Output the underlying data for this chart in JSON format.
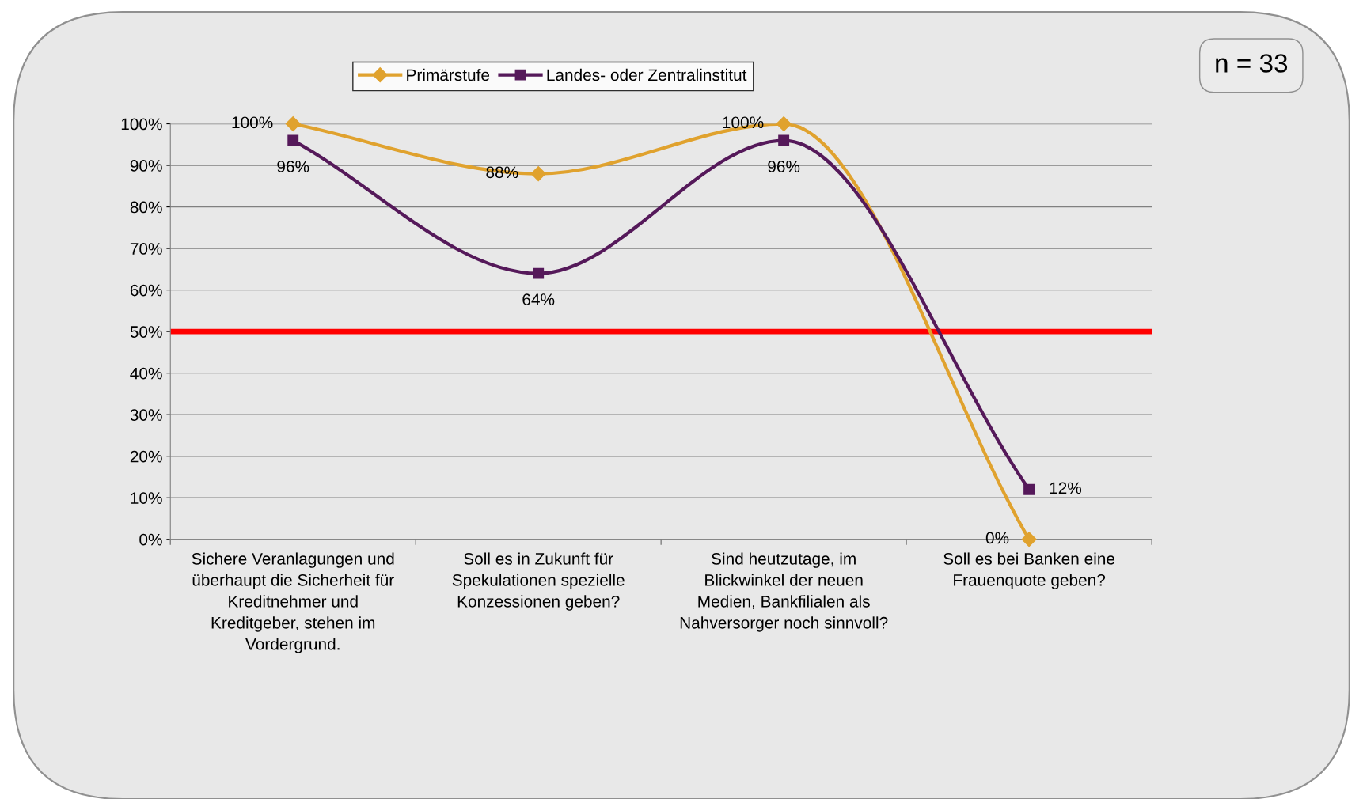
{
  "chart_data": {
    "type": "line",
    "categories": [
      "Sichere Veranlagungen und\nüberhaupt die Sicherheit für\nKreditnehmer und\nKreditgeber, stehen im\nVordergrund.",
      "Soll es in Zukunft für\nSpekulationen spezielle\nKonzessionen geben?",
      "Sind heutzutage, im\nBlickwinkel der neuen\nMedien, Bankfilialen als\nNahversorger noch sinnvoll?",
      "Soll es bei Banken eine\nFrauenquote geben?"
    ],
    "series": [
      {
        "name": "Primärstufe",
        "color": "#e0a22e",
        "marker": "diamond",
        "values": [
          100,
          88,
          100,
          0
        ],
        "value_labels": [
          "100%",
          "88%",
          "100%",
          "0%"
        ]
      },
      {
        "name": "Landes- oder Zentralinstitut",
        "color": "#55195a",
        "marker": "square",
        "values": [
          96,
          64,
          96,
          12
        ],
        "value_labels": [
          "96%",
          "64%",
          "96%",
          "12%"
        ]
      }
    ],
    "ylim": [
      0,
      100
    ],
    "yticks": [
      {
        "value": 0,
        "label": "0%"
      },
      {
        "value": 10,
        "label": "10%"
      },
      {
        "value": 20,
        "label": "20%"
      },
      {
        "value": 30,
        "label": "30%"
      },
      {
        "value": 40,
        "label": "40%"
      },
      {
        "value": 50,
        "label": "50%"
      },
      {
        "value": 60,
        "label": "60%"
      },
      {
        "value": 70,
        "label": "70%"
      },
      {
        "value": 80,
        "label": "80%"
      },
      {
        "value": 90,
        "label": "90%"
      },
      {
        "value": 100,
        "label": "100%"
      }
    ],
    "grid": "y",
    "legend": "top",
    "ref_lines": [
      {
        "axis": "y",
        "value": 50,
        "color": "#ff0000"
      }
    ],
    "annotations": [
      "n = 33"
    ]
  }
}
